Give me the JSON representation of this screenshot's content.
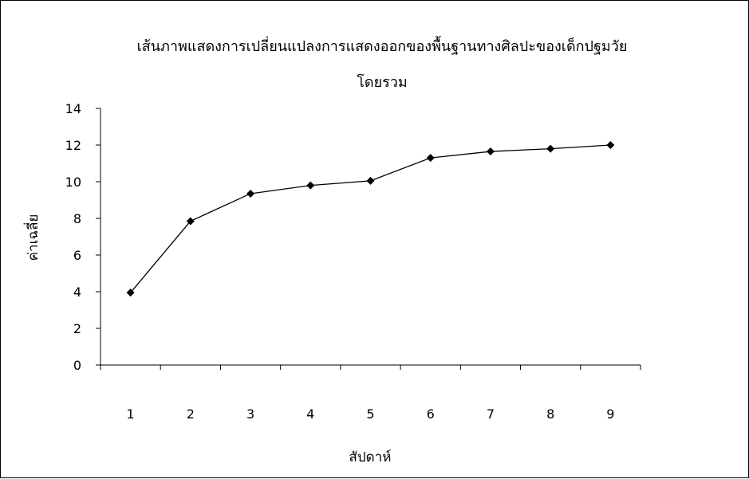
{
  "chart_data": {
    "type": "line",
    "title": "เส้นภาพแสดงการเปลี่ยนแปลงการแสดงออกของพื้นฐานทางศิลปะของเด็กปฐมวัย",
    "subtitle": "โดยรวม",
    "xlabel": "สัปดาห์",
    "ylabel": "ค่าเฉลี่ย",
    "categories": [
      "1",
      "2",
      "3",
      "4",
      "5",
      "6",
      "7",
      "8",
      "9"
    ],
    "series": [
      {
        "values": [
          3.95,
          7.85,
          9.35,
          9.8,
          10.05,
          11.3,
          11.65,
          11.8,
          12.0
        ]
      }
    ],
    "ylim": [
      0,
      14
    ],
    "yticks": [
      "0",
      "2",
      "4",
      "6",
      "8",
      "10",
      "12",
      "14"
    ],
    "grid": false,
    "legend": "none",
    "marker": "diamond",
    "line_color": "#000000"
  }
}
